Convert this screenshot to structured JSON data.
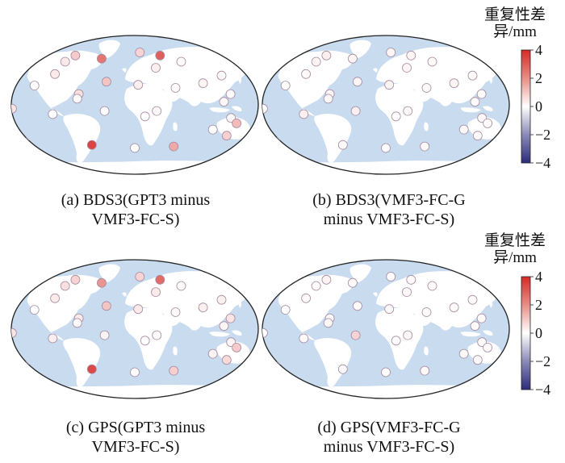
{
  "panels": [
    {
      "id": "a",
      "caption": [
        "(a) BDS3(GPT3 minus",
        "VMF3-FC-S)"
      ],
      "stations": [
        {
          "lon": 8,
          "lat": 68,
          "value": 0.8
        },
        {
          "lon": -108,
          "lat": 56,
          "value": 0.4
        },
        {
          "lon": -94,
          "lat": 64,
          "value": 1.0
        },
        {
          "lon": -52,
          "lat": 60,
          "value": 2.6
        },
        {
          "lon": -120,
          "lat": 40,
          "value": 0.4
        },
        {
          "lon": -148,
          "lat": 25,
          "value": 0.0
        },
        {
          "lon": 40,
          "lat": 64,
          "value": 3.0
        },
        {
          "lon": 72,
          "lat": 56,
          "value": 0.1
        },
        {
          "lon": -42,
          "lat": 30,
          "value": 1.1
        },
        {
          "lon": 32,
          "lat": 48,
          "value": 0.3
        },
        {
          "lon": -82,
          "lat": 14,
          "value": 0.6
        },
        {
          "lon": -84,
          "lat": 8,
          "value": 0.1
        },
        {
          "lon": 5,
          "lat": 26,
          "value": 0.3
        },
        {
          "lon": 60,
          "lat": 22,
          "value": 0.1
        },
        {
          "lon": 101,
          "lat": 28,
          "value": 0.2
        },
        {
          "lon": 130,
          "lat": 38,
          "value": 0.1
        },
        {
          "lon": 140,
          "lat": 14,
          "value": 0.1
        },
        {
          "lon": 130,
          "lat": 4,
          "value": 0.1
        },
        {
          "lon": -179,
          "lat": -5,
          "value": 0.5
        },
        {
          "lon": -120,
          "lat": -12,
          "value": 0.0
        },
        {
          "lon": -44,
          "lat": -8,
          "value": 0.0
        },
        {
          "lon": 32,
          "lat": -8,
          "value": 0.1
        },
        {
          "lon": 15,
          "lat": -15,
          "value": 0.0
        },
        {
          "lon": 141,
          "lat": -17,
          "value": 0.1
        },
        {
          "lon": 150,
          "lat": -24,
          "value": 1.3
        },
        {
          "lon": 116,
          "lat": -32,
          "value": 0.0
        },
        {
          "lon": 138,
          "lat": -40,
          "value": 0.9
        },
        {
          "lon": -168,
          "lat": -48,
          "value": 0.6
        },
        {
          "lon": -66,
          "lat": -52,
          "value": 3.5
        },
        {
          "lon": 60,
          "lat": -54,
          "value": 1.6
        },
        {
          "lon": 0,
          "lat": -56,
          "value": 0.0
        }
      ]
    },
    {
      "id": "b",
      "caption": [
        "(b) BDS3(VMF3-FC-G",
        "minus VMF3-FC-S)"
      ],
      "stations": [
        {
          "lon": 8,
          "lat": 68,
          "value": 0.2
        },
        {
          "lon": -108,
          "lat": 56,
          "value": 0.2
        },
        {
          "lon": -94,
          "lat": 64,
          "value": 0.3
        },
        {
          "lon": -52,
          "lat": 60,
          "value": 0.2
        },
        {
          "lon": -120,
          "lat": 40,
          "value": 0.1
        },
        {
          "lon": -148,
          "lat": 25,
          "value": 0.0
        },
        {
          "lon": 40,
          "lat": 64,
          "value": 0.2
        },
        {
          "lon": 72,
          "lat": 56,
          "value": 0.1
        },
        {
          "lon": -42,
          "lat": 30,
          "value": 0.2
        },
        {
          "lon": 32,
          "lat": 48,
          "value": 0.2
        },
        {
          "lon": -82,
          "lat": 14,
          "value": 0.2
        },
        {
          "lon": -84,
          "lat": 8,
          "value": 0.1
        },
        {
          "lon": 5,
          "lat": 26,
          "value": 0.2
        },
        {
          "lon": 60,
          "lat": 22,
          "value": 0.1
        },
        {
          "lon": 101,
          "lat": 28,
          "value": 0.2
        },
        {
          "lon": 130,
          "lat": 38,
          "value": 0.1
        },
        {
          "lon": 140,
          "lat": 14,
          "value": 0.1
        },
        {
          "lon": 130,
          "lat": 4,
          "value": 0.1
        },
        {
          "lon": -179,
          "lat": -5,
          "value": 0.0
        },
        {
          "lon": -120,
          "lat": -12,
          "value": 0.3
        },
        {
          "lon": -44,
          "lat": -8,
          "value": 0.3
        },
        {
          "lon": 32,
          "lat": -8,
          "value": 0.1
        },
        {
          "lon": 15,
          "lat": -15,
          "value": 0.0
        },
        {
          "lon": 141,
          "lat": -17,
          "value": 0.1
        },
        {
          "lon": 150,
          "lat": -24,
          "value": 0.1
        },
        {
          "lon": 116,
          "lat": -32,
          "value": 0.1
        },
        {
          "lon": 138,
          "lat": -40,
          "value": 0.1
        },
        {
          "lon": -168,
          "lat": -48,
          "value": -0.6
        },
        {
          "lon": -66,
          "lat": -52,
          "value": 0.1
        },
        {
          "lon": 60,
          "lat": -54,
          "value": 0.1
        },
        {
          "lon": 0,
          "lat": -56,
          "value": 0.0
        }
      ]
    },
    {
      "id": "c",
      "caption": [
        "(c) GPS(GPT3 minus",
        "VMF3-FC-S)"
      ],
      "stations": [
        {
          "lon": 8,
          "lat": 68,
          "value": 0.8
        },
        {
          "lon": -108,
          "lat": 56,
          "value": 0.6
        },
        {
          "lon": -94,
          "lat": 64,
          "value": 0.8
        },
        {
          "lon": -52,
          "lat": 60,
          "value": 2.0
        },
        {
          "lon": -120,
          "lat": 40,
          "value": 0.4
        },
        {
          "lon": -148,
          "lat": 25,
          "value": 0.0
        },
        {
          "lon": 40,
          "lat": 64,
          "value": 2.8
        },
        {
          "lon": 72,
          "lat": 56,
          "value": 0.1
        },
        {
          "lon": -42,
          "lat": 30,
          "value": 1.1
        },
        {
          "lon": 32,
          "lat": 48,
          "value": 0.4
        },
        {
          "lon": -82,
          "lat": 14,
          "value": 0.4
        },
        {
          "lon": -84,
          "lat": 8,
          "value": 0.1
        },
        {
          "lon": 5,
          "lat": 26,
          "value": 0.4
        },
        {
          "lon": 60,
          "lat": 22,
          "value": 0.1
        },
        {
          "lon": 101,
          "lat": 28,
          "value": 0.3
        },
        {
          "lon": 130,
          "lat": 38,
          "value": 0.3
        },
        {
          "lon": 140,
          "lat": 14,
          "value": 0.5
        },
        {
          "lon": 130,
          "lat": 4,
          "value": 0.2
        },
        {
          "lon": -179,
          "lat": -5,
          "value": 0.5
        },
        {
          "lon": -120,
          "lat": -12,
          "value": 0.3
        },
        {
          "lon": -44,
          "lat": -8,
          "value": 0.2
        },
        {
          "lon": 32,
          "lat": -8,
          "value": 0.1
        },
        {
          "lon": 15,
          "lat": -15,
          "value": 0.0
        },
        {
          "lon": 141,
          "lat": -17,
          "value": 0.2
        },
        {
          "lon": 150,
          "lat": -24,
          "value": 1.0
        },
        {
          "lon": 116,
          "lat": -32,
          "value": 0.2
        },
        {
          "lon": 138,
          "lat": -40,
          "value": 0.7
        },
        {
          "lon": -168,
          "lat": -48,
          "value": 1.0
        },
        {
          "lon": -66,
          "lat": -52,
          "value": 3.4
        },
        {
          "lon": 60,
          "lat": -54,
          "value": 0.9
        },
        {
          "lon": 0,
          "lat": -56,
          "value": 0.0
        }
      ]
    },
    {
      "id": "d",
      "caption": [
        "(d) GPS(VMF3-FC-G",
        "minus VMF3-FC-S)"
      ],
      "stations": [
        {
          "lon": 8,
          "lat": 68,
          "value": 0.1
        },
        {
          "lon": -108,
          "lat": 56,
          "value": 0.1
        },
        {
          "lon": -94,
          "lat": 64,
          "value": 0.2
        },
        {
          "lon": -52,
          "lat": 60,
          "value": 0.1
        },
        {
          "lon": -120,
          "lat": 40,
          "value": 0.1
        },
        {
          "lon": -148,
          "lat": 25,
          "value": 0.0
        },
        {
          "lon": 40,
          "lat": 64,
          "value": 0.1
        },
        {
          "lon": 72,
          "lat": 56,
          "value": 0.1
        },
        {
          "lon": -42,
          "lat": 30,
          "value": 0.1
        },
        {
          "lon": 32,
          "lat": 48,
          "value": 0.1
        },
        {
          "lon": -82,
          "lat": 14,
          "value": 0.1
        },
        {
          "lon": -84,
          "lat": 8,
          "value": 0.1
        },
        {
          "lon": 5,
          "lat": 26,
          "value": 0.1
        },
        {
          "lon": 60,
          "lat": 22,
          "value": 0.1
        },
        {
          "lon": 101,
          "lat": 28,
          "value": 0.1
        },
        {
          "lon": 130,
          "lat": 38,
          "value": 0.1
        },
        {
          "lon": 140,
          "lat": 14,
          "value": 0.1
        },
        {
          "lon": 130,
          "lat": 4,
          "value": 0.1
        },
        {
          "lon": -179,
          "lat": -5,
          "value": 0.0
        },
        {
          "lon": -120,
          "lat": -12,
          "value": 0.1
        },
        {
          "lon": -44,
          "lat": -8,
          "value": 0.8
        },
        {
          "lon": 32,
          "lat": -8,
          "value": 0.1
        },
        {
          "lon": 15,
          "lat": -15,
          "value": 0.0
        },
        {
          "lon": 141,
          "lat": -17,
          "value": 0.1
        },
        {
          "lon": 150,
          "lat": -24,
          "value": 0.1
        },
        {
          "lon": 116,
          "lat": -32,
          "value": 0.1
        },
        {
          "lon": 138,
          "lat": -40,
          "value": 0.1
        },
        {
          "lon": -168,
          "lat": -48,
          "value": 0.0
        },
        {
          "lon": -66,
          "lat": -52,
          "value": 0.1
        },
        {
          "lon": 60,
          "lat": -54,
          "value": 0.1
        },
        {
          "lon": 0,
          "lat": -56,
          "value": 0.0
        }
      ]
    }
  ],
  "colorbars": [
    {
      "title": [
        "重复性差",
        "异/mm"
      ],
      "ticks": [
        "4",
        "2",
        "0",
        "−2",
        "−4"
      ],
      "min": -4,
      "max": 4
    },
    {
      "title": [
        "重复性差",
        "异/mm"
      ],
      "ticks": [
        "4",
        "2",
        "0",
        "−2",
        "−4"
      ],
      "min": -4,
      "max": 4
    }
  ],
  "colors": {
    "ocean": "#c9dbef",
    "land": "#ffffff",
    "outline": "#222222",
    "marker_edge": "#a58aa0",
    "positive": "#d62a26",
    "negative": "#2c2c7d",
    "neutral": "#ffffff"
  }
}
